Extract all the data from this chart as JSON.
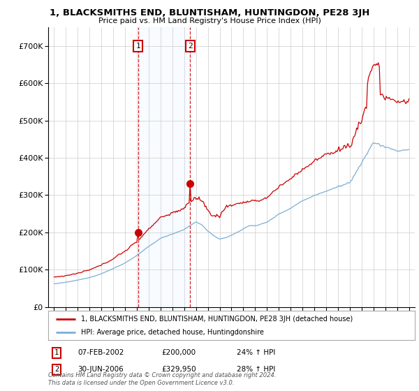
{
  "title": "1, BLACKSMITHS END, BLUNTISHAM, HUNTINGDON, PE28 3JH",
  "subtitle": "Price paid vs. HM Land Registry's House Price Index (HPI)",
  "legend_line1": "1, BLACKSMITHS END, BLUNTISHAM, HUNTINGDON, PE28 3JH (detached house)",
  "legend_line2": "HPI: Average price, detached house, Huntingdonshire",
  "sale1_label": "1",
  "sale1_date": "07-FEB-2002",
  "sale1_price": "£200,000",
  "sale1_hpi": "24% ↑ HPI",
  "sale2_label": "2",
  "sale2_date": "30-JUN-2006",
  "sale2_price": "£329,950",
  "sale2_hpi": "28% ↑ HPI",
  "footer": "Contains HM Land Registry data © Crown copyright and database right 2024.\nThis data is licensed under the Open Government Licence v3.0.",
  "sale1_x": 2002.1,
  "sale2_x": 2006.5,
  "sale1_y": 200000,
  "sale2_y": 329950,
  "red_color": "#cc0000",
  "blue_color": "#7aafd4",
  "shade_color": "#ddeeff",
  "grid_color": "#cccccc",
  "bg_color": "#ffffff",
  "ylim": [
    0,
    750000
  ],
  "xlim": [
    1994.5,
    2025.5
  ],
  "hpi_years": [
    1995,
    1996,
    1997,
    1998,
    1999,
    2000,
    2001,
    2002,
    2003,
    2004,
    2005,
    2006,
    2007,
    2008,
    2009,
    2010,
    2011,
    2012,
    2013,
    2014,
    2015,
    2016,
    2017,
    2018,
    2019,
    2020,
    2021,
    2022,
    2023,
    2024,
    2025
  ],
  "hpi_values": [
    62000,
    66000,
    72000,
    79000,
    89000,
    103000,
    118000,
    138000,
    162000,
    184000,
    196000,
    208000,
    228000,
    212000,
    200000,
    213000,
    218000,
    218000,
    227000,
    249000,
    265000,
    285000,
    299000,
    311000,
    323000,
    333000,
    386000,
    440000,
    430000,
    418000,
    422000
  ],
  "red_base": [
    80000,
    84000,
    90000,
    99000,
    112000,
    130000,
    150000,
    175000,
    210000,
    240000,
    252000,
    265000,
    295000,
    275000,
    258000,
    274000,
    280000,
    282000,
    294000,
    322000,
    344000,
    370000,
    390000,
    408000,
    422000,
    432000,
    503000,
    582000,
    565000,
    548000,
    553000
  ]
}
